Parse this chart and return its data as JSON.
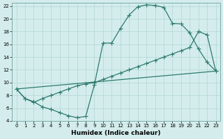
{
  "xlabel": "Humidex (Indice chaleur)",
  "bg_color": "#d4edec",
  "line_color": "#2d7a6e",
  "grid_color": "#b5d9d6",
  "xlim": [
    -0.5,
    23.5
  ],
  "ylim": [
    4,
    22.5
  ],
  "xticks": [
    0,
    1,
    2,
    3,
    4,
    5,
    6,
    7,
    8,
    9,
    10,
    11,
    12,
    13,
    14,
    15,
    16,
    17,
    18,
    19,
    20,
    21,
    22,
    23
  ],
  "yticks": [
    4,
    6,
    8,
    10,
    12,
    14,
    16,
    18,
    20,
    22
  ],
  "line1_x": [
    0,
    1,
    2,
    3,
    4,
    5,
    6,
    7,
    8,
    9,
    10,
    11,
    12,
    13,
    14,
    15,
    16,
    17,
    18,
    19,
    20,
    21,
    22,
    23
  ],
  "line1_y": [
    9,
    7.5,
    7,
    6.2,
    5.8,
    5.3,
    4.8,
    4.5,
    4.7,
    9.7,
    16.2,
    16.2,
    18.5,
    20.6,
    21.9,
    22.2,
    22.1,
    21.8,
    19.3,
    19.2,
    17.8,
    15.3,
    13.2,
    11.8
  ],
  "line2_x": [
    0,
    1,
    2,
    3,
    4,
    5,
    6,
    7,
    8,
    9,
    10,
    11,
    12,
    13,
    14,
    15,
    16,
    17,
    18,
    19,
    20,
    21,
    22,
    23
  ],
  "line2_y": [
    9,
    7.5,
    6.9,
    7.5,
    8.0,
    8.5,
    9.0,
    9.5,
    9.8,
    10.0,
    10.5,
    11.0,
    11.5,
    12.0,
    12.5,
    13.0,
    13.5,
    14.0,
    14.5,
    15.0,
    15.5,
    18.0,
    17.5,
    11.8
  ],
  "line3_x": [
    0,
    23
  ],
  "line3_y": [
    9,
    11.8
  ]
}
